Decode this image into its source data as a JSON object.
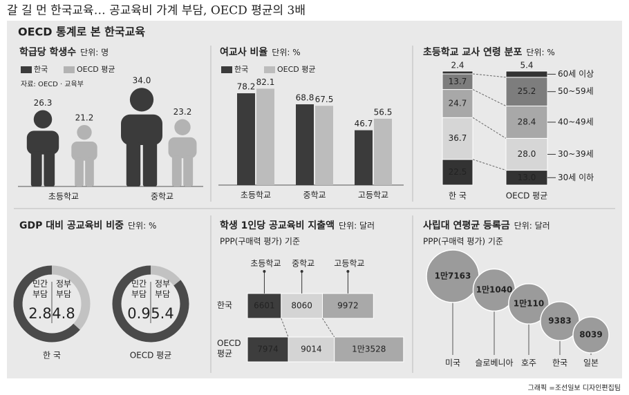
{
  "title": "갈 길 먼 한국교육… 공교육비 가계 부담, OECD 평균의 3배",
  "section_title": "OECD 통계로 본 한국교육",
  "credit": "그래픽 =조선일보 디자인편집팀",
  "chart_data": [
    {
      "type": "pictogram",
      "title": "학급당 학생수",
      "unit": "단위: 명",
      "source": "자료: OECD · 교육부",
      "categories": [
        "초등학교",
        "중학교"
      ],
      "series": [
        {
          "name": "한국",
          "color": "#3b3b3b",
          "values": [
            26.3,
            34.0
          ],
          "value_labels": [
            "26.3",
            "34.0"
          ]
        },
        {
          "name": "OECD 평균",
          "color": "#b3b3b3",
          "values": [
            21.2,
            23.2
          ]
        }
      ]
    },
    {
      "type": "bar",
      "title": "여교사 비율",
      "unit": "단위: %",
      "categories": [
        "초등학교",
        "중학교",
        "고등학교"
      ],
      "series": [
        {
          "name": "한국",
          "color": "#3b3b3b",
          "values": [
            78.2,
            68.8,
            46.7
          ]
        },
        {
          "name": "OECD 평균",
          "color": "#bcbcbc",
          "values": [
            82.1,
            67.5,
            56.5
          ]
        }
      ]
    },
    {
      "type": "stacked",
      "title": "초등학교 교사 연령 분포",
      "unit": "단위: %",
      "categories": [
        "한 국",
        "OECD 평균"
      ],
      "series": [
        {
          "name": "30세 이하",
          "color": "#333333",
          "values": [
            22.5,
            13.0
          ],
          "value_labels": [
            "22.5",
            "13.0"
          ]
        },
        {
          "name": "30~39세",
          "color": "#d6d6d6",
          "values": [
            36.7,
            28.0
          ],
          "value_labels": [
            "36.7",
            "28.0"
          ]
        },
        {
          "name": "40~49세",
          "color": "#a8a8a8",
          "values": [
            24.7,
            28.4
          ]
        },
        {
          "name": "50~59세",
          "color": "#7d7d7d",
          "values": [
            13.7,
            25.2
          ]
        },
        {
          "name": "60세 이상",
          "color": "#333333",
          "values": [
            2.4,
            5.4
          ]
        }
      ]
    },
    {
      "type": "donut",
      "title": "GDP 대비 공교육비 비중",
      "unit": "단위: %",
      "categories": [
        "한 국",
        "OECD 평균"
      ],
      "series": [
        {
          "name": "민간 부담",
          "color": "#c2c2c2",
          "values": [
            2.8,
            0.9
          ]
        },
        {
          "name": "정부 부담",
          "color": "#4a4a4a",
          "values": [
            4.8,
            5.4
          ]
        }
      ]
    },
    {
      "type": "hstacked",
      "title": "학생 1인당 공교육비 지출액",
      "unit": "단위: 달러",
      "subtitle": "PPP(구매력 평가) 기준",
      "categories": [
        "한국",
        "OECD 평균"
      ],
      "series": [
        {
          "name": "초등학교",
          "color": "#3d3d3d",
          "values": [
            6601,
            7974
          ]
        },
        {
          "name": "중학교",
          "color": "#d4d4d4",
          "values": [
            8060,
            9014
          ]
        },
        {
          "name": "고등학교",
          "color": "#a9a9a9",
          "values": [
            9972,
            13528
          ],
          "value_labels": [
            "9972",
            "1만3528"
          ]
        }
      ]
    },
    {
      "type": "bubble",
      "title": "사립대 연평균 등록금",
      "unit": "단위: 달러",
      "subtitle": "PPP(구매력 평가) 기준",
      "categories": [
        "미국",
        "슬로베니아",
        "호주",
        "한국",
        "일본"
      ],
      "values": [
        17163,
        11040,
        10110,
        9383,
        8039
      ],
      "value_labels": [
        "1만7163",
        "1만1040",
        "1만110",
        "9383",
        "8039"
      ],
      "color": "#9b9b9b"
    }
  ]
}
